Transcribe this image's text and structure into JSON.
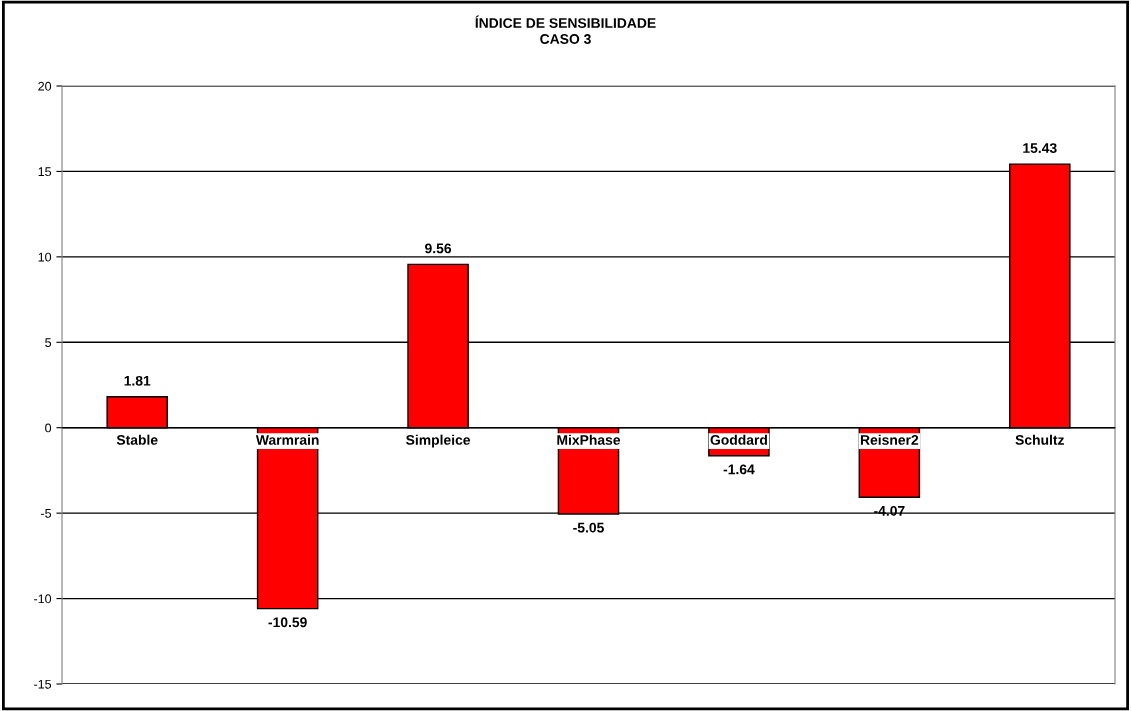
{
  "chart_data": {
    "type": "bar",
    "title": "ÍNDICE DE SENSIBILIDADE\nCASO 3",
    "categories": [
      "Stable",
      "Warmrain",
      "Simpleice",
      "MixPhase",
      "Goddard",
      "Reisner2",
      "Schultz"
    ],
    "values": [
      1.81,
      -10.59,
      9.56,
      -5.05,
      -1.64,
      -4.07,
      15.43
    ],
    "color": "#ff0000",
    "ylim": [
      -15,
      20
    ],
    "yticks": [
      -15,
      -10,
      -5,
      0,
      5,
      10,
      15,
      20
    ],
    "grid": "y",
    "data_labels": true
  }
}
